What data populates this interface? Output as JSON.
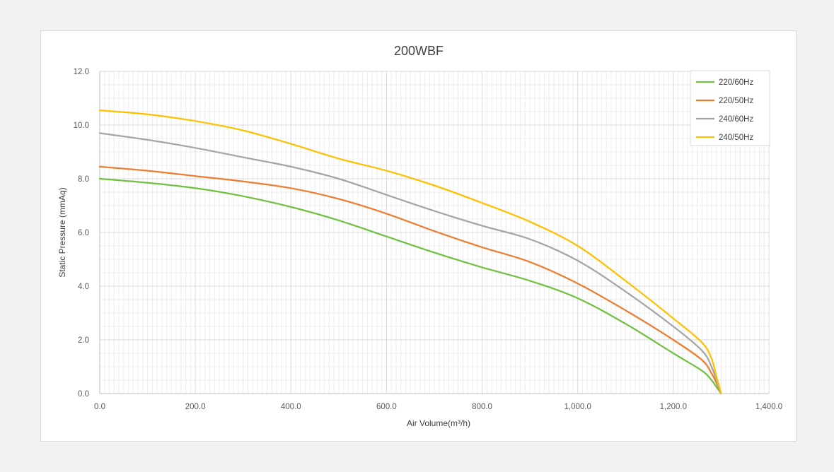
{
  "chart_data": {
    "type": "line",
    "title": "200WBF",
    "xlabel": "Air Volume(m³/h)",
    "ylabel": "Static Pressure (mmAq)",
    "xlim": [
      0,
      1400
    ],
    "ylim": [
      0,
      12
    ],
    "x_ticks": [
      "0.0",
      "200.0",
      "400.0",
      "600.0",
      "800.0",
      "1,000.0",
      "1,200.0",
      "1,400.0"
    ],
    "y_ticks": [
      "0.0",
      "2.0",
      "4.0",
      "6.0",
      "8.0",
      "10.0",
      "12.0"
    ],
    "grid": true,
    "legend": "top-right",
    "series": [
      {
        "name": "220/60Hz",
        "color": "#70c041",
        "x": [
          0,
          100,
          200,
          300,
          400,
          500,
          600,
          700,
          800,
          900,
          1000,
          1100,
          1200,
          1260,
          1280,
          1290,
          1300
        ],
        "y": [
          8.0,
          7.85,
          7.65,
          7.35,
          6.95,
          6.45,
          5.85,
          5.25,
          4.7,
          4.2,
          3.55,
          2.6,
          1.5,
          0.85,
          0.5,
          0.25,
          0.0
        ]
      },
      {
        "name": "220/50Hz",
        "color": "#ed7d31",
        "x": [
          0,
          100,
          200,
          300,
          400,
          500,
          600,
          700,
          800,
          900,
          1000,
          1100,
          1200,
          1260,
          1280,
          1290,
          1300
        ],
        "y": [
          8.45,
          8.3,
          8.1,
          7.9,
          7.65,
          7.25,
          6.7,
          6.05,
          5.45,
          4.9,
          4.1,
          3.1,
          2.0,
          1.25,
          0.75,
          0.4,
          0.0
        ]
      },
      {
        "name": "240/60Hz",
        "color": "#a5a5a5",
        "x": [
          0,
          100,
          200,
          300,
          400,
          500,
          600,
          700,
          800,
          900,
          1000,
          1100,
          1200,
          1260,
          1280,
          1290,
          1300
        ],
        "y": [
          9.7,
          9.45,
          9.15,
          8.8,
          8.45,
          8.0,
          7.4,
          6.8,
          6.25,
          5.75,
          4.95,
          3.8,
          2.5,
          1.6,
          1.0,
          0.5,
          0.0
        ]
      },
      {
        "name": "240/50Hz",
        "color": "#ffc000",
        "x": [
          0,
          100,
          200,
          300,
          400,
          500,
          600,
          700,
          800,
          900,
          1000,
          1100,
          1200,
          1260,
          1280,
          1290,
          1300
        ],
        "y": [
          10.55,
          10.4,
          10.15,
          9.8,
          9.3,
          8.75,
          8.3,
          7.75,
          7.1,
          6.4,
          5.5,
          4.2,
          2.8,
          1.9,
          1.3,
          0.65,
          0.0
        ]
      }
    ]
  }
}
